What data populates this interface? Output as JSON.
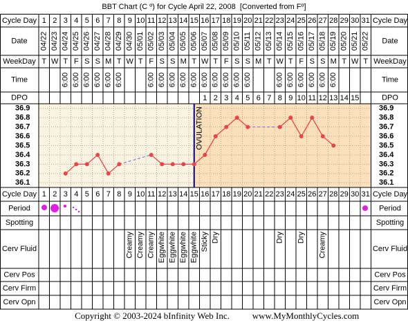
{
  "title": "BBT Chart (C º) for Cycle April 22, 2008  [Converted from Fº]",
  "labels": {
    "cycle_day": "Cycle Day",
    "date": "Date",
    "weekday": "WeekDay",
    "time": "Time",
    "dpo": "DPO",
    "period": "Period",
    "spotting": "Spotting",
    "cerv_fluid": "Cerv Fluid",
    "cerv_pos": "Cerv Pos",
    "cerv_firm": "Cerv Firm",
    "cerv_opn": "Cerv Opn"
  },
  "days": [
    1,
    2,
    3,
    4,
    5,
    6,
    7,
    8,
    9,
    10,
    11,
    12,
    13,
    14,
    15,
    16,
    17,
    18,
    19,
    20,
    21,
    22,
    23,
    24,
    25,
    26,
    27,
    28,
    29,
    30,
    31
  ],
  "dates": [
    "04/22",
    "04/23",
    "04/24",
    "04/25",
    "04/26",
    "04/27",
    "04/28",
    "04/29",
    "04/30",
    "05/01",
    "05/02",
    "05/03",
    "05/04",
    "05/05",
    "05/06",
    "05/07",
    "05/08",
    "05/09",
    "05/10",
    "05/11",
    "05/12",
    "05/13",
    "05/14",
    "05/15",
    "05/16",
    "05/17",
    "05/18",
    "05/19",
    "05/20",
    "05/21",
    "05/22"
  ],
  "weekdays": [
    "T",
    "W",
    "T",
    "F",
    "S",
    "S",
    "M",
    "T",
    "W",
    "T",
    "F",
    "S",
    "S",
    "M",
    "T",
    "W",
    "T",
    "F",
    "S",
    "S",
    "M",
    "T",
    "W",
    "T",
    "F",
    "S",
    "S",
    "M",
    "T",
    "W",
    "T"
  ],
  "times": [
    null,
    null,
    "6:00",
    "6:00",
    "6:00",
    "6:00",
    "6:00",
    "6:00",
    null,
    null,
    "6:00",
    "6:00",
    "6:00",
    "6:00",
    "6:00",
    "6:00",
    "6:00",
    "6:00",
    "6:00",
    "6:00",
    null,
    null,
    "6:00",
    "6:00",
    "6:00",
    "6:00",
    "6:00",
    "6:00",
    null,
    null,
    null
  ],
  "dpo": [
    null,
    null,
    null,
    null,
    null,
    null,
    null,
    null,
    null,
    null,
    null,
    null,
    null,
    null,
    null,
    1,
    2,
    3,
    4,
    5,
    6,
    7,
    8,
    9,
    10,
    11,
    12,
    13,
    14,
    15,
    null
  ],
  "chart": {
    "type": "line",
    "ylim": [
      36.05,
      36.95
    ],
    "yticks": [
      36.1,
      36.2,
      36.3,
      36.4,
      36.5,
      36.6,
      36.7,
      36.8,
      36.9
    ],
    "values": [
      null,
      null,
      36.2,
      36.3,
      36.3,
      36.4,
      36.2,
      36.3,
      null,
      null,
      36.4,
      36.3,
      36.3,
      36.3,
      36.3,
      36.4,
      36.6,
      36.7,
      36.8,
      36.7,
      null,
      null,
      36.7,
      36.8,
      36.6,
      36.8,
      36.6,
      36.5,
      null,
      null,
      null
    ],
    "color": "#e8464a",
    "gap_color": "#6a6ad8",
    "grid": true,
    "ovulation_day": 15,
    "ovulation_label": "OVULATION"
  },
  "cerv_fluid": [
    null,
    null,
    null,
    null,
    null,
    null,
    null,
    null,
    "Creamy",
    "Creamy",
    "Creamy",
    "Eggwhite",
    "Eggwhite",
    "Eggwhite",
    "Eggwhite",
    "Sticky",
    "Dry",
    null,
    null,
    null,
    null,
    null,
    "Dry",
    null,
    "Dry",
    null,
    "Creamy",
    null,
    null,
    null,
    null
  ],
  "footer": {
    "copyright": "Copyright © 2003-2024 bInfinity Web Inc.",
    "site": "www.MyMonthlyCycles.com"
  }
}
